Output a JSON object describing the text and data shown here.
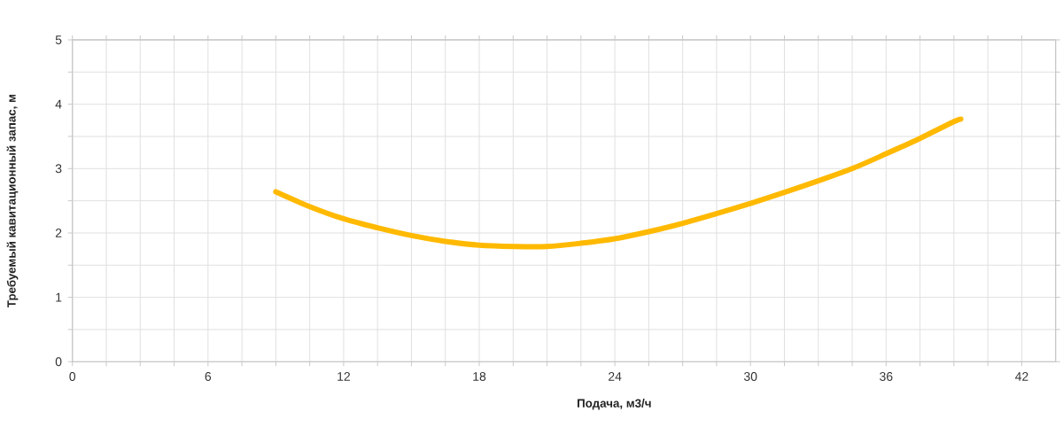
{
  "chart_data": {
    "type": "line",
    "xlabel": "Подача, м3/ч",
    "ylabel": "Требуемый кавитационный запас, м",
    "x": [
      9.0,
      10.5,
      12,
      13.5,
      15,
      16.5,
      18,
      19.5,
      21,
      22.5,
      24,
      25.5,
      27,
      28.5,
      30,
      31.5,
      33,
      34.5,
      36,
      37.5,
      39,
      39.3
    ],
    "values": [
      2.64,
      2.41,
      2.22,
      2.08,
      1.96,
      1.87,
      1.81,
      1.79,
      1.79,
      1.84,
      1.91,
      2.02,
      2.15,
      2.3,
      2.46,
      2.63,
      2.81,
      3.0,
      3.23,
      3.47,
      3.73,
      3.77
    ],
    "color": "#ffb900",
    "xlim": [
      0,
      43.5
    ],
    "ylim": [
      0,
      5
    ],
    "xticks": [
      0,
      {
        "value": 1.5,
        "label": null
      },
      {
        "value": 3,
        "label": null
      },
      {
        "value": 4.5,
        "label": null
      },
      6,
      {
        "value": 7.5,
        "label": null
      },
      {
        "value": 9,
        "label": null
      },
      {
        "value": 10.5,
        "label": null
      },
      12,
      {
        "value": 13.5,
        "label": null
      },
      {
        "value": 15,
        "label": null
      },
      {
        "value": 16.5,
        "label": null
      },
      18,
      {
        "value": 19.5,
        "label": null
      },
      {
        "value": 21,
        "label": null
      },
      {
        "value": 22.5,
        "label": null
      },
      24,
      {
        "value": 25.5,
        "label": null
      },
      {
        "value": 27,
        "label": null
      },
      {
        "value": 28.5,
        "label": null
      },
      30,
      {
        "value": 31.5,
        "label": null
      },
      {
        "value": 33,
        "label": null
      },
      {
        "value": 34.5,
        "label": null
      },
      36,
      {
        "value": 37.5,
        "label": null
      },
      {
        "value": 39,
        "label": null
      },
      {
        "value": 40.5,
        "label": null
      },
      42
    ],
    "yticks": [
      0,
      {
        "value": 0.5,
        "label": null
      },
      1,
      {
        "value": 1.5,
        "label": null
      },
      2,
      {
        "value": 2.5,
        "label": null
      },
      3,
      {
        "value": 3.5,
        "label": null
      },
      4,
      {
        "value": 4.5,
        "label": null
      },
      5
    ],
    "grid": true,
    "marker": "none",
    "line_style": "solid"
  }
}
